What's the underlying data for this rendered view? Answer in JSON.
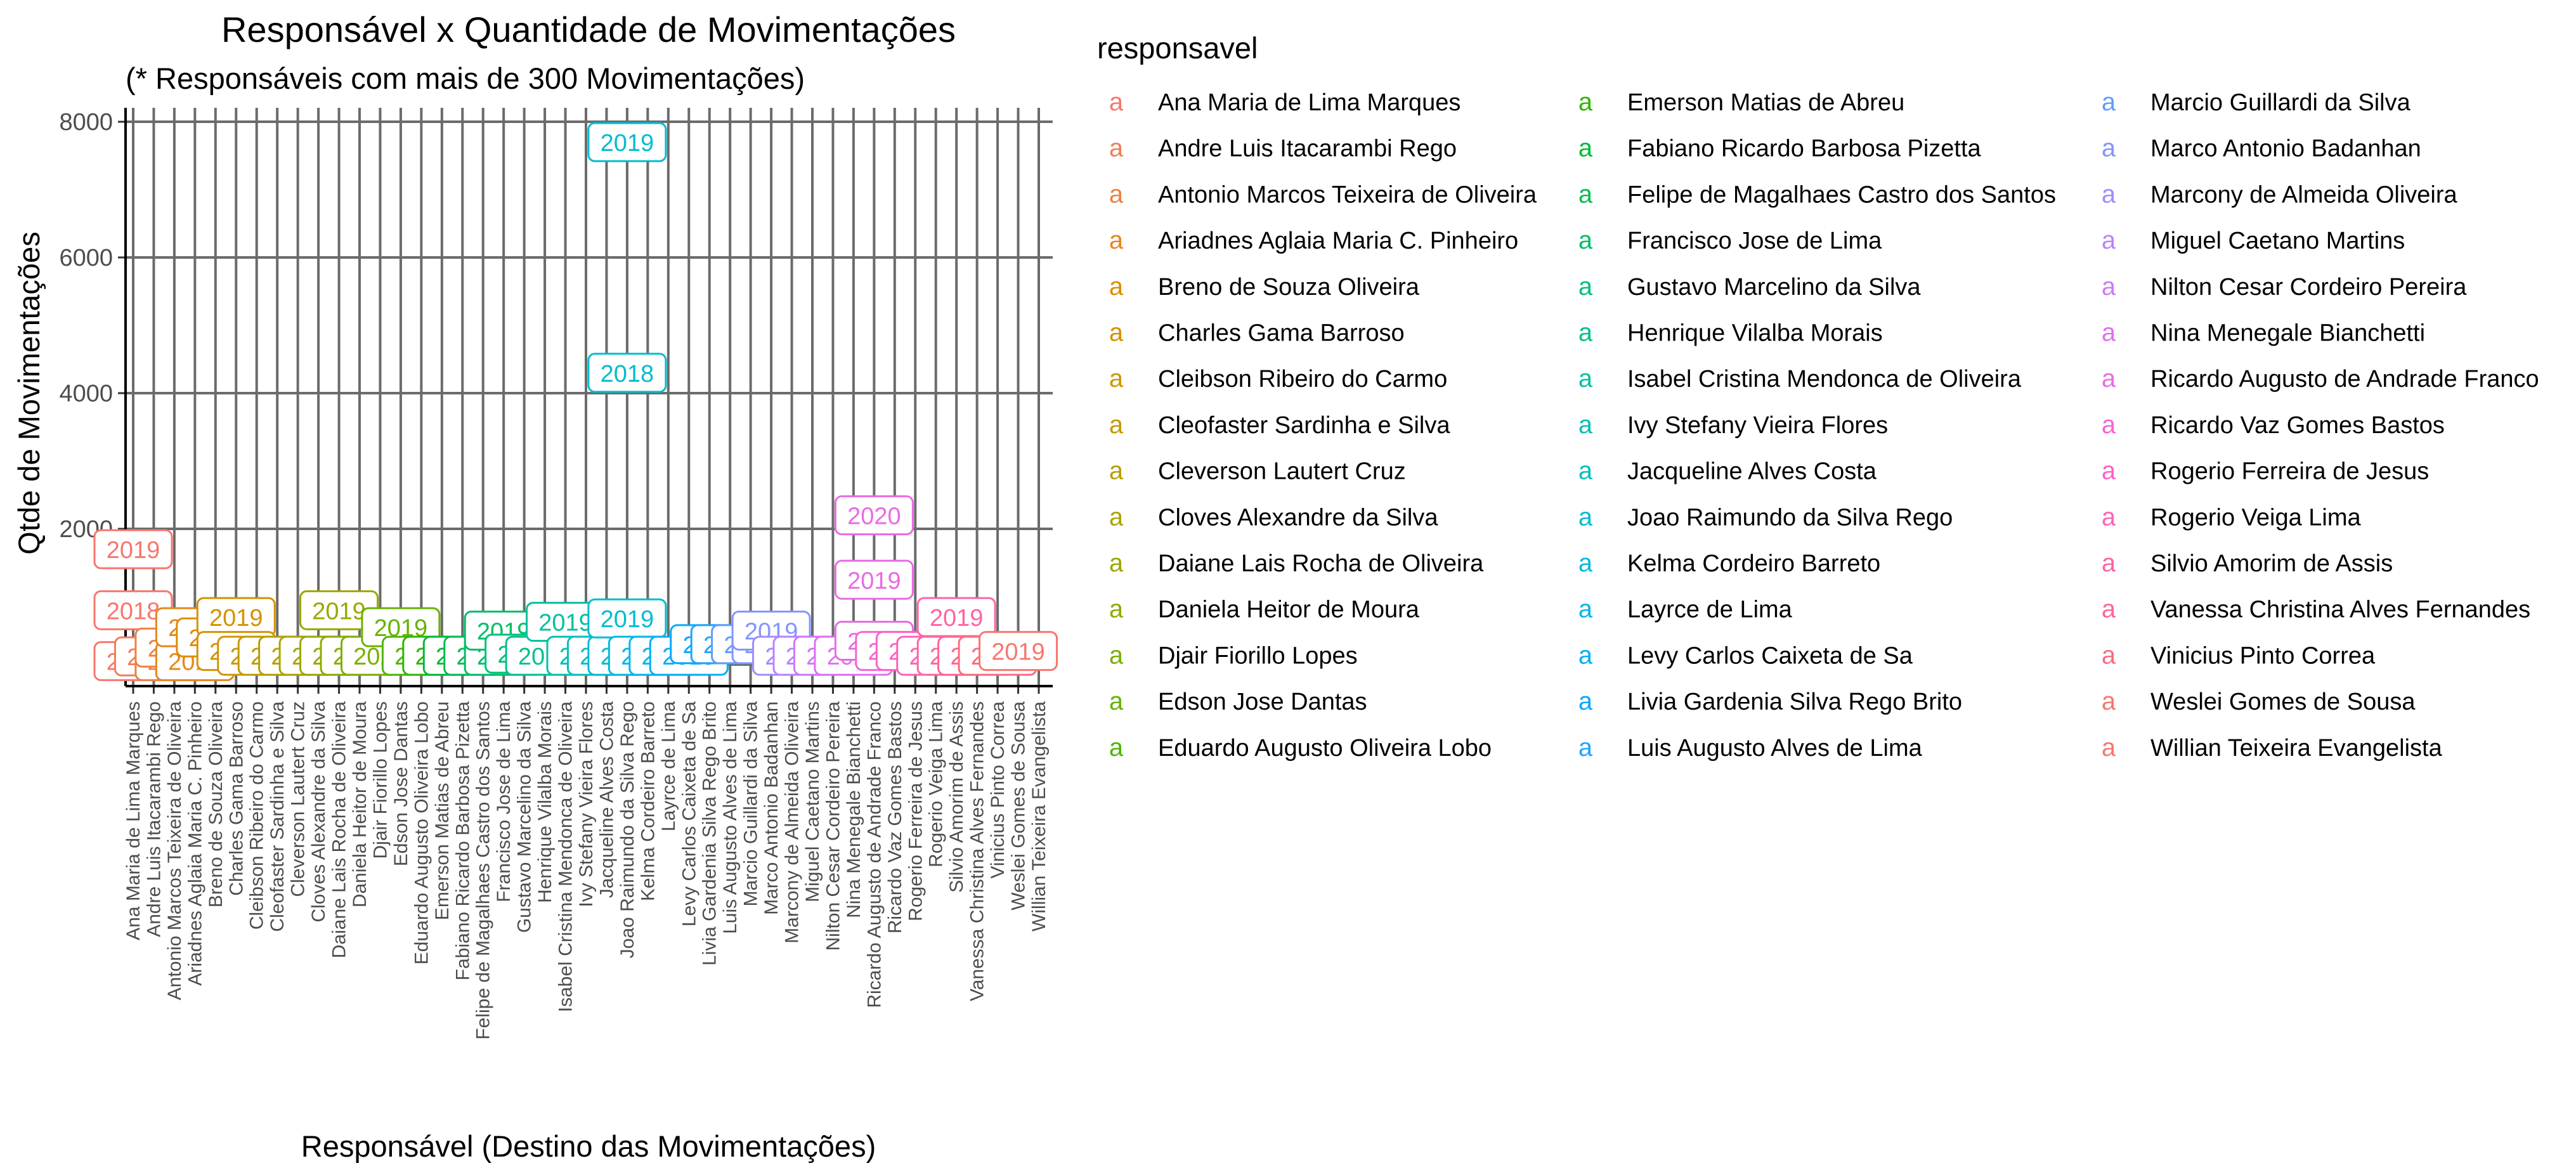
{
  "chart_data": {
    "type": "label",
    "title": "Responsável x Quantidade de Movimentações",
    "subtitle": "(* Responsáveis com mais de 300 Movimentações)",
    "xlabel": "Responsável (Destino das Movimentações)",
    "ylabel": "Qtde de Movimentações",
    "ylim": [
      -200,
      8100
    ],
    "yticks": [
      0,
      2000,
      4000,
      6000,
      8000
    ],
    "grid": true,
    "legend_title": "responsavel",
    "legend_key_glyph": "a",
    "legend_position": "right",
    "categories": [
      "Ana Maria de Lima Marques",
      "Andre Luis Itacarambi Rego",
      "Antonio Marcos Teixeira de Oliveira",
      "Ariadnes Aglaia Maria C. Pinheiro",
      "Breno de Souza Oliveira",
      "Charles Gama Barroso",
      "Cleibson Ribeiro do Carmo",
      "Cleofaster Sardinha e Silva",
      "Cleverson Lautert Cruz",
      "Cloves Alexandre da Silva",
      "Daiane Lais Rocha de Oliveira",
      "Daniela Heitor de Moura",
      "Djair Fiorillo Lopes",
      "Edson Jose Dantas",
      "Eduardo Augusto Oliveira Lobo",
      "Emerson Matias de Abreu",
      "Fabiano Ricardo Barbosa Pizetta",
      "Felipe de Magalhaes Castro dos Santos",
      "Francisco Jose de Lima",
      "Gustavo Marcelino da Silva",
      "Henrique Vilalba Morais",
      "Isabel Cristina Mendonca de Oliveira",
      "Ivy Stefany Vieira Flores",
      "Jacqueline Alves Costa",
      "Joao Raimundo da Silva Rego",
      "Kelma Cordeiro Barreto",
      "Layrce de Lima",
      "Levy Carlos Caixeta de Sa",
      "Livia Gardenia Silva Rego Brito",
      "Luis Augusto Alves de Lima",
      "Marcio Guillardi da Silva",
      "Marco Antonio Badanhan",
      "Marcony de Almeida Oliveira",
      "Miguel Caetano Martins",
      "Nilton Cesar Cordeiro Pereira",
      "Nina Menegale Bianchetti",
      "Ricardo Augusto de Andrade Franco",
      "Ricardo Vaz Gomes Bastos",
      "Rogerio Ferreira de Jesus",
      "Rogerio Veiga Lima",
      "Silvio Amorim de Assis",
      "Vanessa Christina Alves Fernandes",
      "Vinicius Pinto Correa",
      "Weslei Gomes de Sousa",
      "Willian Teixeira Evangelista"
    ],
    "colors": [
      "#F8766D",
      "#F37B59",
      "#ED8141",
      "#E7861B",
      "#DF8C00",
      "#D69100",
      "#CC9600",
      "#C19A00",
      "#B69E00",
      "#A9A400",
      "#9CA700",
      "#8DAB00",
      "#7CAE00",
      "#68B200",
      "#4FB500",
      "#2BB800",
      "#00BA38",
      "#00BC52",
      "#00BE67",
      "#00C07B",
      "#00C08D",
      "#00C19F",
      "#00C0AF",
      "#00C0BF",
      "#00BDCF",
      "#00BADE",
      "#00B6EB",
      "#00B0F6",
      "#00A9FF",
      "#1FA4FF",
      "#619CFF",
      "#8594FF",
      "#A18CFF",
      "#B983FF",
      "#CC7AF6",
      "#DD71EE",
      "#EA6AE3",
      "#F564D5",
      "#FD61C6",
      "#FF61B6",
      "#FF63A5",
      "#FF6593",
      "#FC6A80",
      "#F8766D",
      "#F8766D"
    ],
    "series": [
      {
        "x": 0,
        "y": 50,
        "label": "2019"
      },
      {
        "x": 0,
        "y": 1700,
        "label": "2019"
      },
      {
        "x": 0,
        "y": 800,
        "label": "2018"
      },
      {
        "x": 1,
        "y": 120,
        "label": "2019"
      },
      {
        "x": 2,
        "y": 50,
        "label": "2019"
      },
      {
        "x": 2,
        "y": 250,
        "label": "2019"
      },
      {
        "x": 3,
        "y": 50,
        "label": "2019"
      },
      {
        "x": 3,
        "y": 550,
        "label": "2020"
      },
      {
        "x": 4,
        "y": 400,
        "label": "2019"
      },
      {
        "x": 5,
        "y": 700,
        "label": "2019"
      },
      {
        "x": 5,
        "y": 200,
        "label": "2019"
      },
      {
        "x": 6,
        "y": 130,
        "label": "2019"
      },
      {
        "x": 7,
        "y": 130,
        "label": "2019"
      },
      {
        "x": 8,
        "y": 130,
        "label": "2019"
      },
      {
        "x": 9,
        "y": 130,
        "label": "2019"
      },
      {
        "x": 10,
        "y": 130,
        "label": "2019"
      },
      {
        "x": 10,
        "y": 800,
        "label": "2019"
      },
      {
        "x": 11,
        "y": 130,
        "label": "2019"
      },
      {
        "x": 12,
        "y": 130,
        "label": "2020"
      },
      {
        "x": 13,
        "y": 550,
        "label": "2019"
      },
      {
        "x": 14,
        "y": 130,
        "label": "2019"
      },
      {
        "x": 15,
        "y": 130,
        "label": "2019"
      },
      {
        "x": 16,
        "y": 130,
        "label": "2019"
      },
      {
        "x": 17,
        "y": 130,
        "label": "2020"
      },
      {
        "x": 18,
        "y": 130,
        "label": "2019"
      },
      {
        "x": 18,
        "y": 500,
        "label": "2019"
      },
      {
        "x": 19,
        "y": 160,
        "label": "2020"
      },
      {
        "x": 20,
        "y": 130,
        "label": "2019"
      },
      {
        "x": 21,
        "y": 630,
        "label": "2019"
      },
      {
        "x": 22,
        "y": 130,
        "label": "2020"
      },
      {
        "x": 23,
        "y": 130,
        "label": "2019"
      },
      {
        "x": 24,
        "y": 130,
        "label": "2019"
      },
      {
        "x": 24,
        "y": 4300,
        "label": "2018"
      },
      {
        "x": 24,
        "y": 7700,
        "label": "2019"
      },
      {
        "x": 24,
        "y": 680,
        "label": "2019"
      },
      {
        "x": 25,
        "y": 130,
        "label": "2019"
      },
      {
        "x": 26,
        "y": 130,
        "label": "2019"
      },
      {
        "x": 27,
        "y": 130,
        "label": "2019"
      },
      {
        "x": 28,
        "y": 300,
        "label": "2019"
      },
      {
        "x": 29,
        "y": 300,
        "label": "2019"
      },
      {
        "x": 30,
        "y": 300,
        "label": "2019"
      },
      {
        "x": 31,
        "y": 300,
        "label": "2019"
      },
      {
        "x": 31,
        "y": 500,
        "label": "2019"
      },
      {
        "x": 32,
        "y": 130,
        "label": "2019"
      },
      {
        "x": 33,
        "y": 130,
        "label": "2019"
      },
      {
        "x": 34,
        "y": 130,
        "label": "2019"
      },
      {
        "x": 35,
        "y": 130,
        "label": "2020"
      },
      {
        "x": 36,
        "y": 2200,
        "label": "2020"
      },
      {
        "x": 36,
        "y": 1250,
        "label": "2019"
      },
      {
        "x": 36,
        "y": 350,
        "label": "2019"
      },
      {
        "x": 37,
        "y": 200,
        "label": "2019"
      },
      {
        "x": 38,
        "y": 200,
        "label": "2019"
      },
      {
        "x": 39,
        "y": 130,
        "label": "2019"
      },
      {
        "x": 40,
        "y": 130,
        "label": "2019"
      },
      {
        "x": 40,
        "y": 700,
        "label": "2019"
      },
      {
        "x": 41,
        "y": 130,
        "label": "2019"
      },
      {
        "x": 42,
        "y": 130,
        "label": "2019"
      },
      {
        "x": 43,
        "y": 200,
        "label": "2019"
      }
    ]
  }
}
